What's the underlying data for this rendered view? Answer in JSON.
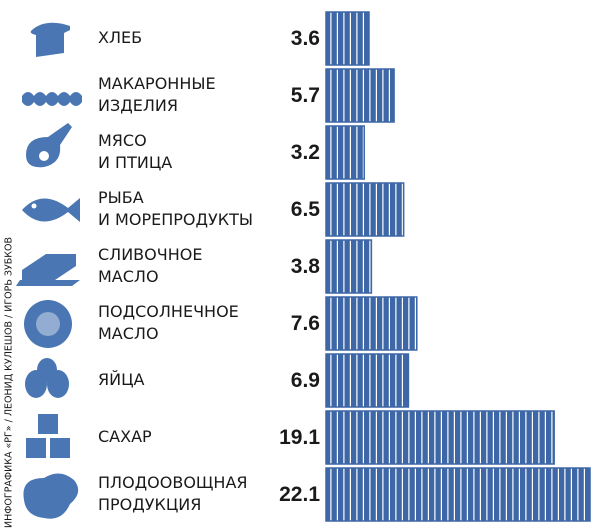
{
  "chart_data": {
    "type": "bar",
    "orientation": "horizontal",
    "categories": [
      [
        "ХЛЕБ"
      ],
      [
        "МАКАРОННЫЕ",
        "ИЗДЕЛИЯ"
      ],
      [
        "МЯСО",
        "И ПТИЦА"
      ],
      [
        "РЫБА",
        "И МОРЕПРОДУКТЫ"
      ],
      [
        "СЛИВОЧНОЕ",
        "МАСЛО"
      ],
      [
        "ПОДСОЛНЕЧНОЕ",
        "МАСЛО"
      ],
      [
        "ЯЙЦА"
      ],
      [
        "САХАР"
      ],
      [
        "ПЛОДООВОЩНАЯ",
        "ПРОДУКЦИЯ"
      ]
    ],
    "values": [
      3.6,
      5.7,
      3.2,
      6.5,
      3.8,
      7.6,
      6.9,
      19.1,
      22.1
    ],
    "color": "#3d67a6",
    "credit": "ИНФОГРАФИКА «РГ» / ЛЕОНИД КУЛЕШОВ / ИГОРЬ ЗУБКОВ"
  }
}
